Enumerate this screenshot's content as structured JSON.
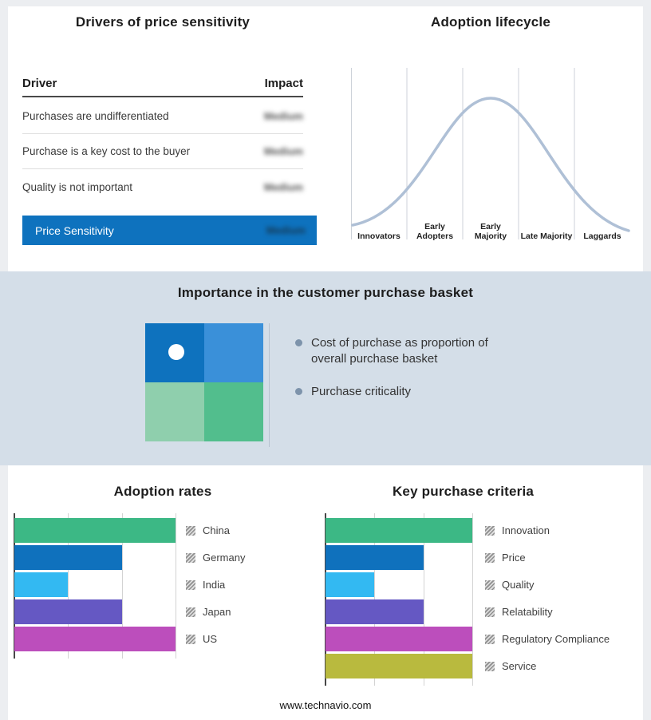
{
  "page": {
    "footer_url": "www.technavio.com"
  },
  "drivers_panel": {
    "title": "Drivers of price sensitivity",
    "columns": {
      "driver": "Driver",
      "impact": "Impact"
    },
    "rows": [
      {
        "driver": "Purchases are undifferentiated",
        "impact": "Medium"
      },
      {
        "driver": "Purchase is a key cost to the buyer",
        "impact": "Medium"
      },
      {
        "driver": "Quality is not important",
        "impact": "Medium"
      }
    ],
    "summary": {
      "label": "Price Sensitivity",
      "impact": "Medium",
      "bg_color": "#0E72BE"
    }
  },
  "lifecycle_panel": {
    "title": "Adoption lifecycle",
    "stages": [
      "Innovators",
      "Early Adopters",
      "Early Majority",
      "Late Majority",
      "Laggards"
    ],
    "curve_color": "#AFC0D6"
  },
  "basket_panel": {
    "title": "Importance in the customer purchase basket",
    "band_bg": "#D4DEE8",
    "bullets": [
      "Cost of purchase as proportion of overall purchase basket",
      "Purchase criticality"
    ],
    "quadrant": {
      "top_left": "#0E72BE",
      "top_right": "#3A90D9",
      "bottom_left": "#8FCFAD",
      "bottom_right": "#52BE8D"
    }
  },
  "chart_data": [
    {
      "type": "bar",
      "orientation": "horizontal",
      "title": "Adoption rates",
      "categories": [
        "China",
        "Germany",
        "India",
        "Japan",
        "US"
      ],
      "values": [
        3,
        2,
        1,
        2,
        3
      ],
      "xlim": [
        0,
        3
      ],
      "colors": [
        "#3CB885",
        "#0F71BD",
        "#33B9F2",
        "#6558C3",
        "#BC4EBC"
      ],
      "grid": true,
      "legend_position": "right"
    },
    {
      "type": "bar",
      "orientation": "horizontal",
      "title": "Key purchase criteria",
      "categories": [
        "Innovation",
        "Price",
        "Quality",
        "Relatability",
        "Regulatory Compliance",
        "Service"
      ],
      "values": [
        3,
        2,
        1,
        2,
        3,
        3
      ],
      "xlim": [
        0,
        3
      ],
      "colors": [
        "#3CB885",
        "#0F71BD",
        "#33B9F2",
        "#6558C3",
        "#BC4EBC",
        "#B9BA3E"
      ],
      "grid": true,
      "legend_position": "right"
    }
  ]
}
